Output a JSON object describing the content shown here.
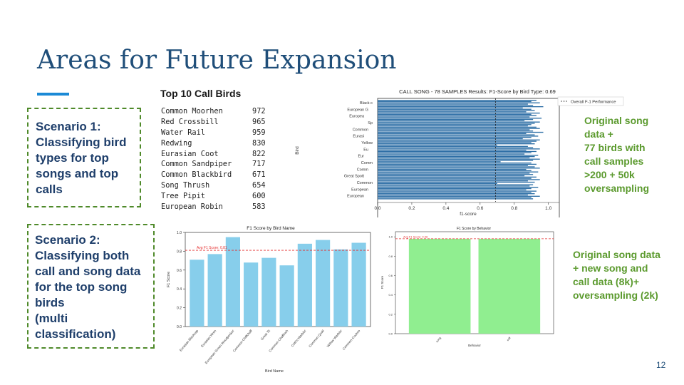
{
  "title": "Areas for Future Expansion",
  "scenario1": {
    "lines": [
      "Scenario 1:",
      "Classifying bird",
      "types for top",
      "songs and top",
      "calls"
    ]
  },
  "scenario2": {
    "lines": [
      "Scenario 2:",
      "Classifying both",
      "call and song data",
      "for the top song",
      "birds",
      "(multi",
      "classification)"
    ]
  },
  "top_calls": {
    "title": "Top 10 Call Birds",
    "rows": [
      {
        "name": "Common Moorhen",
        "count": "972"
      },
      {
        "name": "Red Crossbill",
        "count": "965"
      },
      {
        "name": "Water Rail",
        "count": "959"
      },
      {
        "name": "Redwing",
        "count": "830"
      },
      {
        "name": "Eurasian Coot",
        "count": "822"
      },
      {
        "name": "Common Sandpiper",
        "count": "717"
      },
      {
        "name": "Common Blackbird",
        "count": "671"
      },
      {
        "name": "Song Thrush",
        "count": "654"
      },
      {
        "name": "Tree Pipit",
        "count": "600"
      },
      {
        "name": "European Robin",
        "count": "583"
      }
    ]
  },
  "note1": {
    "lines": [
      "Original song",
      "data +",
      "77 birds with",
      "call samples",
      ">200 + 50k",
      "oversampling"
    ]
  },
  "note2": {
    "lines": [
      "Original song data",
      "+ new song and",
      "call data (8k)+",
      "oversampling (2k)"
    ]
  },
  "page_number": "12",
  "chart_data": [
    {
      "type": "bar",
      "orientation": "horizontal",
      "title": "CALL SONG - 78 SAMPLES Results: F1-Score by Bird Type: 0.69",
      "xlabel": "f1-score",
      "ylabel": "Bird",
      "xlim": [
        0,
        1.0
      ],
      "xticks": [
        "0.0",
        "0.2",
        "0.4",
        "0.6",
        "0.8",
        "1.0"
      ],
      "reference_line": 0.69,
      "legend": [
        "Overall F-1 Performance"
      ],
      "legend_position": "top-right",
      "bar_color": "#2e6fa6",
      "values": [
        0.93,
        0.9,
        0.95,
        0.88,
        0.91,
        0.97,
        0.85,
        0.9,
        0.92,
        0.87,
        0.95,
        0.9,
        0.93,
        0.89,
        0.96,
        0.91,
        0.86,
        0.95,
        0.92,
        0.9,
        0.88,
        0.93,
        0.95,
        0.89,
        0.91,
        0.97,
        0.87,
        0.92,
        0.94,
        0.9,
        0.85,
        0.95,
        0.93,
        0.9,
        0.92,
        0.7,
        0.88,
        0.91,
        0.95,
        0.87,
        0.93,
        0.9,
        0.86,
        0.94,
        0.92,
        0.89,
        0.95,
        0.91,
        0.72,
        0.9,
        0.93,
        0.88,
        0.92,
        0.95,
        0.87,
        0.9,
        0.94,
        0.89,
        0.91,
        0.86,
        0.93,
        0.9,
        0.95,
        0.88,
        0.92,
        0.7,
        0.91,
        0.89,
        0.94,
        0.9,
        0.87,
        0.93,
        0.9,
        0.92,
        0.88,
        0.95,
        0.9,
        0.91
      ],
      "visible_labels": [
        "Black-c",
        "European G",
        "Europea",
        "Sp",
        "Common",
        "Eurasi",
        "Yellow",
        "Eu",
        "Eur",
        "Comm",
        "Comm",
        "Great Spott",
        "Common",
        "European",
        "European"
      ]
    },
    {
      "type": "bar",
      "title": "F1 Score by Bird Name",
      "xlabel": "Bird Name",
      "ylabel": "F1 Score",
      "ylim": [
        0,
        1.0
      ],
      "yticks": [
        "0.0",
        "0.2",
        "0.4",
        "0.6",
        "0.8",
        "1.0"
      ],
      "reference_line": 0.81,
      "reference_label": "Avg F1 Score: 0.81",
      "bar_color": "#87ceeb",
      "categories": [
        "Eurasian Blackcap",
        "Eurasian Wren",
        "European Green Woodpecker",
        "Common Chiffchaff",
        "Great Tit",
        "Common Chaffinch",
        "Cetti's Warbler",
        "Common Quail",
        "Willow Warbler",
        "Common Cuckoo"
      ],
      "values": [
        0.71,
        0.77,
        0.95,
        0.68,
        0.73,
        0.65,
        0.88,
        0.92,
        0.82,
        0.89
      ]
    },
    {
      "type": "bar",
      "title": "F1 Score by Behavior",
      "xlabel": "Behavior",
      "ylabel": "F1 Score",
      "ylim": [
        0,
        1.0
      ],
      "yticks": [
        "0.0",
        "0.2",
        "0.4",
        "0.6",
        "0.8",
        "1.0"
      ],
      "reference_line": 0.98,
      "reference_label": "Avg F1 Score: 0.98",
      "bar_color": "#90ee90",
      "categories": [
        "song",
        "call"
      ],
      "values": [
        0.98,
        0.98
      ]
    }
  ]
}
